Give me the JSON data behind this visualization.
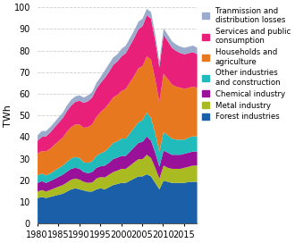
{
  "years": [
    1980,
    1981,
    1982,
    1983,
    1984,
    1985,
    1986,
    1987,
    1988,
    1989,
    1990,
    1991,
    1992,
    1993,
    1994,
    1995,
    1996,
    1997,
    1998,
    1999,
    2000,
    2001,
    2002,
    2003,
    2004,
    2005,
    2006,
    2007,
    2008,
    2009,
    2010,
    2011,
    2012,
    2013,
    2014,
    2015,
    2016,
    2017,
    2018
  ],
  "forest_industries": [
    12,
    12.5,
    12,
    12.5,
    13,
    13.5,
    14,
    15,
    16,
    16.5,
    16,
    15.5,
    15,
    15,
    16,
    16.5,
    16,
    17,
    18,
    18.5,
    19,
    19,
    20,
    21,
    22,
    22,
    23,
    22,
    19,
    16,
    20,
    19.5,
    19,
    19,
    19,
    19,
    19.5,
    19.5,
    19.5
  ],
  "metal_industry": [
    3,
    3.2,
    3,
    3.2,
    3.5,
    3.8,
    4,
    4.2,
    4.5,
    4.5,
    4.5,
    4,
    4,
    4.2,
    5,
    5.2,
    5.5,
    5.8,
    6,
    6.2,
    6.5,
    6.5,
    7,
    7.5,
    8,
    8,
    9,
    8.5,
    7,
    5,
    7,
    6.5,
    6.5,
    6.5,
    6.5,
    7,
    7,
    7.5,
    7.5
  ],
  "chemical_industry": [
    4,
    4.1,
    4,
    4.1,
    4.3,
    4.5,
    4.8,
    5,
    5,
    5,
    5,
    4.5,
    4.5,
    4.8,
    5,
    5,
    5.5,
    5.5,
    6,
    6,
    6,
    6,
    6.5,
    7,
    7.5,
    8,
    8.5,
    8,
    7,
    5.5,
    7,
    7,
    6.5,
    6.5,
    6.5,
    6.5,
    6.5,
    6.5,
    6.5
  ],
  "other_industries": [
    3.5,
    3.5,
    3.5,
    3.5,
    3.8,
    4,
    4.2,
    4.5,
    4.8,
    5,
    5,
    4.5,
    4.8,
    5,
    5.5,
    6,
    6.5,
    7,
    7.5,
    7.5,
    8,
    8,
    8.5,
    9,
    9.5,
    10,
    11,
    10.5,
    9,
    7,
    8.5,
    8,
    7.5,
    7,
    7,
    6.5,
    7,
    7,
    7
  ],
  "households_agriculture": [
    10,
    10.5,
    11,
    11.5,
    12,
    12.5,
    13,
    14,
    14.5,
    15,
    15.5,
    16,
    16.5,
    17,
    18,
    19,
    20,
    20.5,
    21,
    21.5,
    22,
    23,
    23.5,
    24,
    25,
    25,
    26,
    27,
    25,
    23,
    27,
    26,
    25,
    24.5,
    24,
    23.5,
    23,
    23,
    22.5
  ],
  "services_public": [
    6,
    6.5,
    7,
    7.5,
    8,
    8.5,
    9,
    9.5,
    10,
    10.5,
    11,
    11.5,
    12,
    12.5,
    13,
    13.5,
    14,
    14.5,
    15,
    15.5,
    16,
    16.5,
    17,
    17.5,
    18,
    18.5,
    19,
    19,
    18,
    16,
    18,
    17.5,
    17,
    16.5,
    16,
    16,
    16,
    16,
    15.5
  ],
  "transmission_losses": [
    2.5,
    2.7,
    2.5,
    2.5,
    2.4,
    2.5,
    2.5,
    2.6,
    2.7,
    2.5,
    2.5,
    2.5,
    2.7,
    2.5,
    2.7,
    2.8,
    3.5,
    3.7,
    3.5,
    3.3,
    3.5,
    3.5,
    3.5,
    3.5,
    3.5,
    3.5,
    3,
    3,
    3,
    2.5,
    3,
    3,
    3,
    3,
    3,
    3,
    3,
    3,
    3
  ],
  "colors": {
    "forest_industries": "#1a5fa8",
    "metal_industry": "#aabb22",
    "chemical_industry": "#991199",
    "other_industries": "#22bbbb",
    "households_agriculture": "#e87820",
    "services_public": "#e8207a",
    "transmission_losses": "#9aabcc"
  },
  "labels": {
    "forest_industries": "Forest industries",
    "metal_industry": "Metal industry",
    "chemical_industry": "Chemical industry",
    "other_industries": "Other industries\nand construction",
    "households_agriculture": "Households and\nagriculture",
    "services_public": "Services and public\nconsumption",
    "transmission_losses": "Tranmission and\ndistribution losses"
  },
  "ylabel": "TWh",
  "ylim": [
    0,
    100
  ],
  "xlim": [
    1980,
    2018
  ],
  "yticks": [
    0,
    10,
    20,
    30,
    40,
    50,
    60,
    70,
    80,
    90,
    100
  ],
  "xticks": [
    1980,
    1985,
    1990,
    1995,
    2000,
    2005,
    2010,
    2015
  ]
}
